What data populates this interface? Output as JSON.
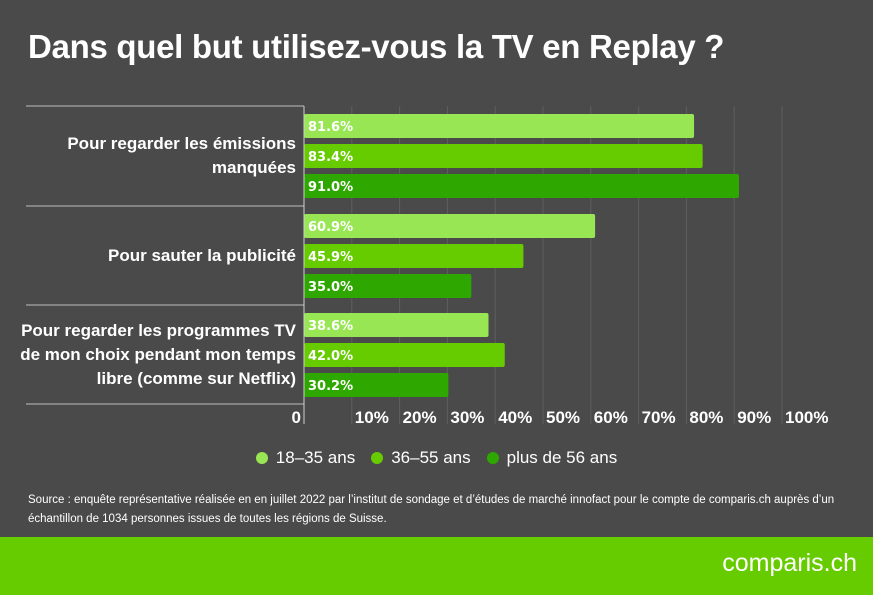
{
  "title": "Dans quel but utilisez-vous la TV en Replay ?",
  "chart_data": {
    "type": "bar",
    "orientation": "horizontal",
    "categories": [
      [
        "Pour regarder les émissions",
        "manquées"
      ],
      [
        "Pour sauter la publicité"
      ],
      [
        "Pour regarder les programmes TV",
        "de mon choix pendant mon temps",
        "libre (comme sur Netflix)"
      ]
    ],
    "series": [
      {
        "name": "18–35 ans",
        "color": "#99e655",
        "values": [
          81.6,
          60.9,
          38.6
        ],
        "labels": [
          "81.6%",
          "60.9%",
          "38.6%"
        ]
      },
      {
        "name": "36–55 ans",
        "color": "#66cc00",
        "values": [
          83.4,
          45.9,
          42.0
        ],
        "labels": [
          "83.4%",
          "45.9%",
          "42.0%"
        ]
      },
      {
        "name": "plus de 56 ans",
        "color": "#2ea800",
        "values": [
          91.0,
          35.0,
          30.2
        ],
        "labels": [
          "91.0%",
          "35.0%",
          "30.2%"
        ]
      }
    ],
    "x_ticks": [
      "0",
      "10%",
      "20%",
      "30%",
      "40%",
      "50%",
      "60%",
      "70%",
      "80%",
      "90%",
      "100%"
    ],
    "xlim": [
      0,
      100
    ],
    "grid": true,
    "legend_position": "bottom"
  },
  "source": "Source : enquête représentative réalisée en en juillet 2022 par l’institut de sondage et d’études de marché innofact pour le compte de comparis.ch auprès d’un échantillon de 1034 personnes issues de toutes les régions de Suisse.",
  "logo": "comparis.ch"
}
